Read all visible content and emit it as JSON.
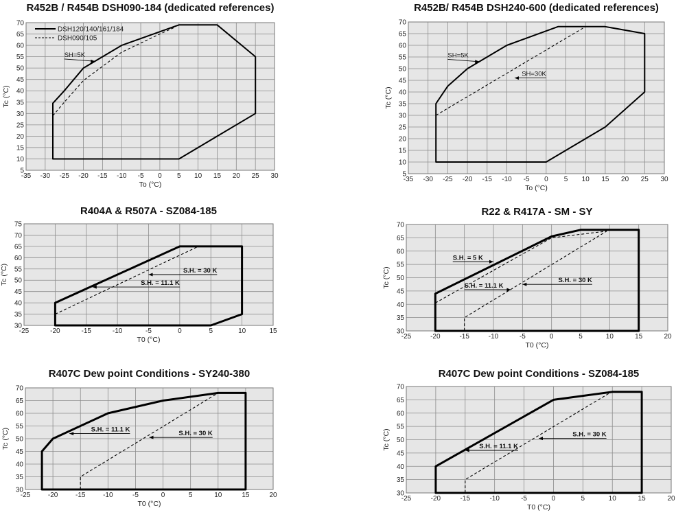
{
  "chart_data": [
    {
      "type": "line",
      "title": "R452B / R454B DSH090-184 (dedicated references)",
      "xlabel": "To (°C)",
      "ylabel": "Tc (°C)",
      "xlim": [
        -35,
        30
      ],
      "ylim": [
        5,
        70
      ],
      "xstep": 5,
      "ystep": 5,
      "grid": true,
      "legend": {
        "placement": "top-left",
        "entries": [
          {
            "name": "DSH120/140/161/184",
            "style": "solid"
          },
          {
            "name": "DSH090/105",
            "style": "dashed"
          }
        ]
      },
      "series": [
        {
          "name": "DSH120/140/161/184",
          "style": "solid",
          "closed": true,
          "points": [
            [
              -28,
              10
            ],
            [
              -28,
              34.5
            ],
            [
              -25,
              40
            ],
            [
              -20,
              50
            ],
            [
              -10,
              60
            ],
            [
              5,
              69
            ],
            [
              15,
              69
            ],
            [
              25,
              55
            ],
            [
              25,
              30
            ],
            [
              15,
              20
            ],
            [
              5,
              10
            ]
          ]
        },
        {
          "name": "DSH090/105",
          "style": "dashed",
          "closed": false,
          "points": [
            [
              -28,
              29
            ],
            [
              -25,
              35
            ],
            [
              -20,
              44.5
            ],
            [
              -10,
              57
            ],
            [
              0,
              65
            ],
            [
              4,
              68
            ]
          ]
        }
      ],
      "annotations": [
        {
          "text": "SH=5K",
          "from": [
            -25,
            54
          ],
          "to": [
            -17,
            53
          ]
        }
      ]
    },
    {
      "type": "line",
      "title": "R452B/ R454B DSH240-600 (dedicated references)",
      "xlabel": "To (°C)",
      "ylabel": "Tc (°C)",
      "xlim": [
        -35,
        30
      ],
      "ylim": [
        5,
        70
      ],
      "xstep": 5,
      "ystep": 5,
      "grid": true,
      "series": [
        {
          "style": "solid",
          "closed": true,
          "points": [
            [
              -28,
              10
            ],
            [
              -28,
              35
            ],
            [
              -25,
              42.5
            ],
            [
              -20,
              50
            ],
            [
              -10,
              60
            ],
            [
              3,
              68
            ],
            [
              15,
              68
            ],
            [
              25,
              65
            ],
            [
              25,
              40
            ],
            [
              15,
              25
            ],
            [
              0,
              10
            ]
          ]
        },
        {
          "style": "dashed",
          "closed": false,
          "points": [
            [
              -28,
              30
            ],
            [
              10,
              68
            ]
          ]
        }
      ],
      "annotations": [
        {
          "text": "SH=5K",
          "from": [
            -25,
            54
          ],
          "to": [
            -17,
            53
          ]
        },
        {
          "text": "SH=30K",
          "from": [
            0,
            46
          ],
          "to": [
            -8,
            46
          ]
        }
      ]
    },
    {
      "type": "line",
      "title": "R404A & R507A - SZ084-185",
      "xlabel": "T0 (°C)",
      "ylabel": "Tc (°C)",
      "xlim": [
        -25,
        15
      ],
      "ylim": [
        30,
        75
      ],
      "xstep": 5,
      "ystep": 5,
      "grid": true,
      "series": [
        {
          "style": "solid",
          "closed": true,
          "points": [
            [
              -20,
              30
            ],
            [
              -20,
              40
            ],
            [
              0,
              65
            ],
            [
              10,
              65
            ],
            [
              10,
              35
            ],
            [
              5,
              30
            ]
          ]
        },
        {
          "style": "dashed",
          "closed": false,
          "points": [
            [
              -20,
              35
            ],
            [
              3,
              65
            ]
          ]
        }
      ],
      "annotations": [
        {
          "text": "S.H. = 30 K",
          "from": [
            6,
            52.5
          ],
          "to": [
            -5,
            52.5
          ]
        },
        {
          "text": "S.H. = 11.1 K",
          "from": [
            0,
            47
          ],
          "to": [
            -14,
            47
          ]
        }
      ]
    },
    {
      "type": "line",
      "title": "R22 & R417A - SM - SY",
      "xlabel": "T0 (°C)",
      "ylabel": "Tc (°C)",
      "xlim": [
        -25,
        20
      ],
      "ylim": [
        30,
        70
      ],
      "xstep": 5,
      "ystep": 5,
      "grid": true,
      "series": [
        {
          "style": "solid",
          "closed": true,
          "points": [
            [
              -20,
              30
            ],
            [
              -20,
              44
            ],
            [
              0,
              65.5
            ],
            [
              5,
              68
            ],
            [
              15,
              68
            ],
            [
              15,
              30
            ]
          ]
        },
        {
          "style": "dashed",
          "closed": false,
          "points": [
            [
              -20,
              40.5
            ],
            [
              0,
              65
            ],
            [
              9.5,
              67.5
            ]
          ]
        },
        {
          "style": "dashed",
          "closed": false,
          "points": [
            [
              -15,
              30
            ],
            [
              -15,
              35
            ],
            [
              9.5,
              67.5
            ]
          ]
        }
      ],
      "annotations": [
        {
          "text": "S.H. = 5 K",
          "from": [
            -17,
            56
          ],
          "to": [
            -10,
            56
          ]
        },
        {
          "text": "S.H. = 11.1 K",
          "from": [
            -15,
            45.5
          ],
          "to": [
            -7,
            45.5
          ]
        },
        {
          "text": "S.H. = 30 K",
          "from": [
            7,
            47.5
          ],
          "to": [
            -5,
            47.5
          ]
        }
      ]
    },
    {
      "type": "line",
      "title": "R407C  Dew point Conditions - SY240-380",
      "xlabel": "T0 (°C)",
      "ylabel": "Tc (°C)",
      "xlim": [
        -25,
        20
      ],
      "ylim": [
        30,
        70
      ],
      "xstep": 5,
      "ystep": 5,
      "grid": true,
      "series": [
        {
          "style": "solid",
          "closed": true,
          "points": [
            [
              -22,
              30
            ],
            [
              -22,
              45
            ],
            [
              -20,
              50
            ],
            [
              -10,
              60
            ],
            [
              0,
              65
            ],
            [
              10,
              68
            ],
            [
              15,
              68
            ],
            [
              15,
              30
            ]
          ]
        },
        {
          "style": "dashed",
          "closed": false,
          "points": [
            [
              -15,
              30
            ],
            [
              -15,
              35
            ],
            [
              10,
              68
            ]
          ]
        }
      ],
      "annotations": [
        {
          "text": "S.H. = 11.1 K",
          "from": [
            -6,
            52
          ],
          "to": [
            -17,
            52
          ]
        },
        {
          "text": "S.H. = 30 K",
          "from": [
            9,
            50.5
          ],
          "to": [
            -2.5,
            50.5
          ]
        }
      ]
    },
    {
      "type": "line",
      "title": "R407C Dew point Conditions  - SZ084-185",
      "xlabel": "T0 (°C)",
      "ylabel": "Tc (°C)",
      "xlim": [
        -25,
        20
      ],
      "ylim": [
        30,
        70
      ],
      "xstep": 5,
      "ystep": 5,
      "grid": true,
      "series": [
        {
          "style": "solid",
          "closed": true,
          "points": [
            [
              -20,
              30
            ],
            [
              -20,
              40
            ],
            [
              0,
              65
            ],
            [
              10,
              68
            ],
            [
              15,
              68
            ],
            [
              15,
              30
            ]
          ]
        },
        {
          "style": "dashed",
          "closed": false,
          "points": [
            [
              -15,
              30
            ],
            [
              -15,
              35
            ],
            [
              9.5,
              67.5
            ]
          ]
        }
      ],
      "annotations": [
        {
          "text": "S.H. = 30 K",
          "from": [
            9,
            50.5
          ],
          "to": [
            -2.5,
            50.5
          ]
        },
        {
          "text": "S.H. = 11.1 K",
          "from": [
            -6,
            46
          ],
          "to": [
            -15,
            46
          ]
        }
      ]
    }
  ]
}
